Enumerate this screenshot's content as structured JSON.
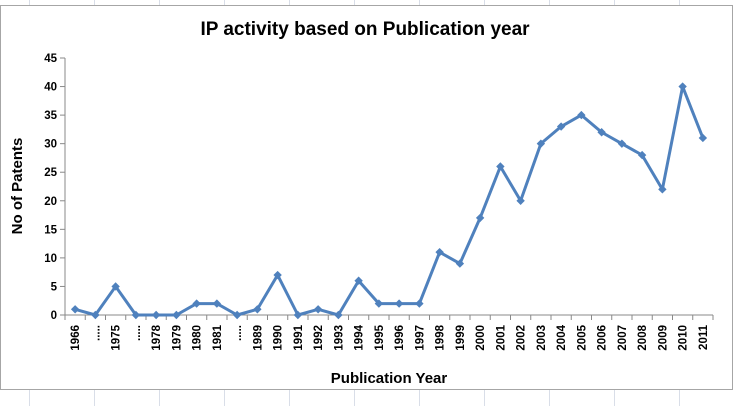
{
  "chart_data": {
    "type": "line",
    "title": "IP activity based on Publication year",
    "xlabel": "Publication Year",
    "ylabel": "No of Patents",
    "categories": [
      "1966",
      ".....",
      "1975",
      ".....",
      "1978",
      "1979",
      "1980",
      "1981",
      ".....",
      "1989",
      "1990",
      "1991",
      "1992",
      "1993",
      "1994",
      "1995",
      "1996",
      "1997",
      "1998",
      "1999",
      "2000",
      "2001",
      "2002",
      "2003",
      "2004",
      "2005",
      "2006",
      "2007",
      "2008",
      "2009",
      "2010",
      "2011"
    ],
    "values": [
      1,
      0,
      5,
      0,
      0,
      0,
      2,
      2,
      0,
      1,
      7,
      0,
      1,
      0,
      6,
      2,
      2,
      2,
      11,
      9,
      17,
      26,
      20,
      30,
      33,
      35,
      32,
      30,
      28,
      22,
      40,
      31
    ],
    "ylim": [
      0,
      45
    ],
    "yticks": [
      0,
      5,
      10,
      15,
      20,
      25,
      30,
      35,
      40,
      45
    ],
    "grid": "off",
    "legend": "none",
    "marker": "diamond",
    "series_color": "#4F81BD",
    "axis_color": "#898989",
    "tick_label_color": "#000000",
    "chart_border_color": "#a6a6a6",
    "worksheet_gridline_color": "#d9dee8",
    "background_color": "#ffffff"
  }
}
